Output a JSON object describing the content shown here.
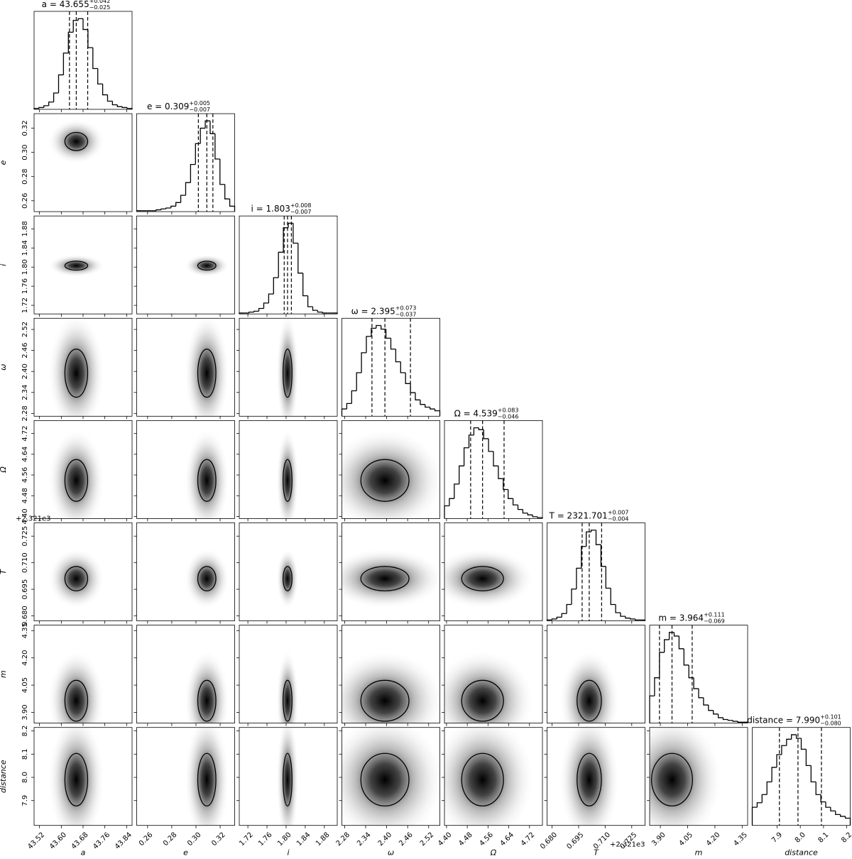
{
  "chart_data": {
    "type": "corner",
    "params": [
      {
        "label": "a",
        "title": "a = 43.655",
        "median": 43.655,
        "plus": {
          "value": 0.042,
          "label": "+0.042"
        },
        "minus": {
          "value": 0.025,
          "label": "−0.025"
        },
        "lim": [
          43.5,
          43.86
        ],
        "ticks": [
          43.52,
          {
            "value": 43.6,
            "label": "43.60"
          },
          43.68,
          43.76,
          43.84
        ],
        "counts": [
          1,
          2,
          4,
          8,
          18,
          38,
          62,
          85,
          98,
          100,
          88,
          68,
          45,
          28,
          16,
          9,
          5,
          3,
          2,
          1
        ]
      },
      {
        "label": "e",
        "title": "e = 0.309",
        "median": 0.309,
        "plus": {
          "value": 0.005,
          "label": "+0.005"
        },
        "minus": {
          "value": 0.007,
          "label": "−0.007"
        },
        "lim": [
          0.251,
          0.332
        ],
        "ticks": [
          0.26,
          0.28,
          {
            "value": 0.3,
            "label": "0.30"
          },
          0.32
        ],
        "counts": [
          1,
          1,
          1,
          1,
          2,
          3,
          4,
          6,
          10,
          18,
          32,
          52,
          75,
          92,
          100,
          86,
          58,
          30,
          14,
          6
        ]
      },
      {
        "label": "i",
        "title": "i = 1.803",
        "median": 1.803,
        "plus": {
          "value": 0.008,
          "label": "+0.008"
        },
        "minus": {
          "value": 0.007,
          "label": "−0.007"
        },
        "lim": [
          1.702,
          1.907
        ],
        "ticks": [
          1.72,
          1.76,
          {
            "value": 1.8,
            "label": "1.80"
          },
          1.84,
          1.88
        ],
        "counts": [
          1,
          1,
          2,
          3,
          6,
          12,
          22,
          40,
          68,
          95,
          100,
          78,
          45,
          20,
          8,
          4,
          2,
          1,
          1,
          1
        ]
      },
      {
        "label": "ω",
        "title": "ω = 2.395",
        "median": 2.395,
        "plus": {
          "value": 0.073,
          "label": "+0.073"
        },
        "minus": {
          "value": 0.037,
          "label": "−0.037"
        },
        "lim": [
          2.272,
          2.552
        ],
        "ticks": [
          2.28,
          2.34,
          {
            "value": 2.4,
            "label": "2.40"
          },
          2.46,
          2.52
        ],
        "counts": [
          8,
          14,
          28,
          48,
          70,
          88,
          97,
          100,
          96,
          86,
          74,
          60,
          48,
          36,
          26,
          18,
          13,
          10,
          8,
          6
        ]
      },
      {
        "label": "Ω",
        "title": "Ω = 4.539",
        "median": 4.539,
        "plus": {
          "value": 0.083,
          "label": "+0.083"
        },
        "minus": {
          "value": 0.046,
          "label": "−0.046"
        },
        "lim": [
          4.392,
          4.77
        ],
        "ticks": [
          {
            "value": 4.4,
            "label": "4.40"
          },
          4.48,
          4.56,
          4.64,
          4.72
        ],
        "counts": [
          14,
          22,
          38,
          58,
          78,
          92,
          100,
          98,
          88,
          74,
          58,
          44,
          32,
          22,
          15,
          10,
          6,
          4,
          2,
          1
        ]
      },
      {
        "label": "T",
        "title": "T = 2321.701",
        "median": 2321.701,
        "plus": {
          "value": 0.007,
          "label": "+0.007"
        },
        "minus": {
          "value": 0.004,
          "label": "−0.004"
        },
        "lim": [
          2321.6772,
          2321.7325
        ],
        "offset_label": "+2.321e3",
        "ticks": [
          {
            "value": 2321.68,
            "label": "0.680"
          },
          {
            "value": 2321.695,
            "label": "0.695"
          },
          {
            "value": 2321.71,
            "label": "0.710"
          },
          {
            "value": 2321.725,
            "label": "0.725"
          }
        ],
        "counts": [
          1,
          2,
          4,
          8,
          18,
          35,
          58,
          82,
          98,
          100,
          84,
          60,
          36,
          18,
          9,
          5,
          3,
          2,
          1,
          1
        ]
      },
      {
        "label": "m",
        "title": "m = 3.964",
        "median": 3.964,
        "plus": {
          "value": 0.111,
          "label": "+0.111"
        },
        "minus": {
          "value": 0.069,
          "label": "−0.069"
        },
        "lim": [
          3.841,
          4.38
        ],
        "ticks": [
          {
            "value": 3.9,
            "label": "3.90"
          },
          4.05,
          {
            "value": 4.2,
            "label": "4.20"
          },
          4.35
        ],
        "counts": [
          30,
          50,
          78,
          92,
          100,
          96,
          82,
          64,
          50,
          38,
          28,
          20,
          14,
          10,
          6,
          4,
          3,
          2,
          1,
          1
        ]
      },
      {
        "label": "distance",
        "title": "distance = 7.990",
        "median": 7.99,
        "plus": {
          "value": 0.101,
          "label": "+0.101"
        },
        "minus": {
          "value": 0.08,
          "label": "−0.080"
        },
        "lim": [
          7.793,
          8.215
        ],
        "ticks": [
          7.9,
          {
            "value": 8,
            "label": "8.0"
          },
          8.1,
          8.2
        ],
        "counts": [
          20,
          25,
          34,
          48,
          64,
          78,
          88,
          95,
          100,
          96,
          84,
          66,
          48,
          34,
          26,
          20,
          16,
          12,
          10,
          8
        ]
      }
    ]
  }
}
